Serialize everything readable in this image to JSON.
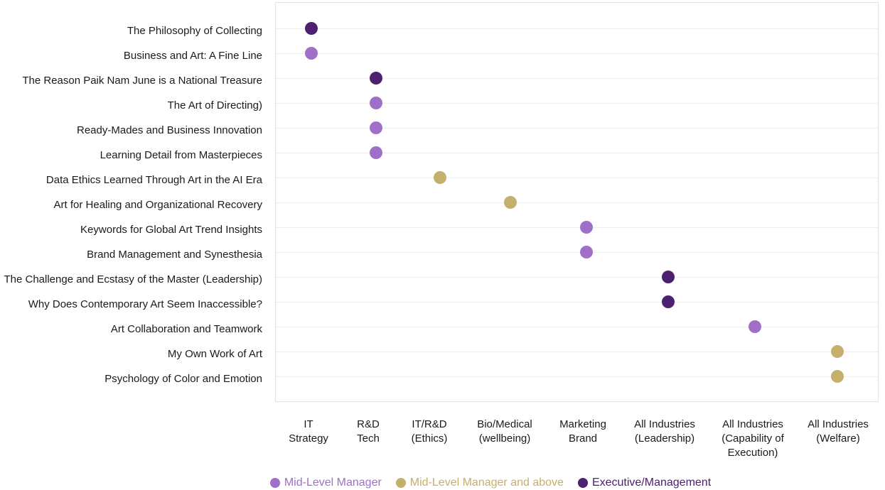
{
  "chart_data": {
    "type": "scatter",
    "title": "",
    "xlabel": "",
    "ylabel": "",
    "grid": "horizontal",
    "legend_position": "bottom",
    "x_categories": [
      [
        "IT",
        "Strategy"
      ],
      [
        "R&D",
        "Tech"
      ],
      [
        "IT/R&D",
        "(Ethics)"
      ],
      [
        "Bio/Medical",
        "(wellbeing)"
      ],
      [
        "Marketing",
        "Brand"
      ],
      [
        "All Industries",
        "(Leadership)"
      ],
      [
        "All Industries",
        "(Capability of",
        "Execution)"
      ],
      [
        "All Industries",
        "(Welfare)"
      ]
    ],
    "y_categories": [
      "The Philosophy of Collecting",
      "Business and Art: A Fine Line",
      "The Reason Paik Nam June is a National Treasure",
      "The Art of Directing)",
      "Ready-Mades and Business Innovation",
      "Learning Detail from Masterpieces",
      "Data Ethics Learned Through Art in the AI Era",
      "Art for Healing and Organizational Recovery",
      "Keywords for Global Art Trend Insights",
      "Brand Management and Synesthesia",
      "The Challenge and Ecstasy of the Master (Leadership)",
      "Why Does Contemporary Art Seem Inaccessible?",
      "Art Collaboration and Teamwork",
      "My Own Work of Art",
      "Psychology of Color and Emotion"
    ],
    "series": [
      {
        "name": "Mid-Level Manager",
        "color": "#a070c8",
        "points": [
          {
            "x": "IT Strategy",
            "y": "Business and Art: A Fine Line"
          },
          {
            "x": "R&D Tech",
            "y": "The Art of Directing)"
          },
          {
            "x": "R&D Tech",
            "y": "Ready-Mades and Business Innovation"
          },
          {
            "x": "R&D Tech",
            "y": "Learning Detail from Masterpieces"
          },
          {
            "x": "Marketing Brand",
            "y": "Keywords for Global Art Trend Insights"
          },
          {
            "x": "Marketing Brand",
            "y": "Brand Management and Synesthesia"
          },
          {
            "x": "All Industries (Capability of Execution)",
            "y": "Art Collaboration and Teamwork"
          }
        ]
      },
      {
        "name": "Mid-Level Manager and above",
        "color": "#c4b06c",
        "points": [
          {
            "x": "IT/R&D (Ethics)",
            "y": "Data Ethics Learned Through Art in the AI Era"
          },
          {
            "x": "Bio/Medical (wellbeing)",
            "y": "Art for Healing and Organizational Recovery"
          },
          {
            "x": "All Industries (Welfare)",
            "y": "My Own Work of Art"
          },
          {
            "x": "All Industries (Welfare)",
            "y": "Psychology of Color and Emotion"
          }
        ]
      },
      {
        "name": "Executive/Management",
        "color": "#4e2070",
        "points": [
          {
            "x": "IT Strategy",
            "y": "The Philosophy of Collecting"
          },
          {
            "x": "R&D Tech",
            "y": "The Reason Paik Nam June is a National Treasure"
          },
          {
            "x": "All Industries (Leadership)",
            "y": "The Challenge and Ecstasy of the Master (Leadership)"
          },
          {
            "x": "All Industries (Leadership)",
            "y": "Why Does Contemporary Art Seem Inaccessible?"
          }
        ]
      }
    ]
  }
}
